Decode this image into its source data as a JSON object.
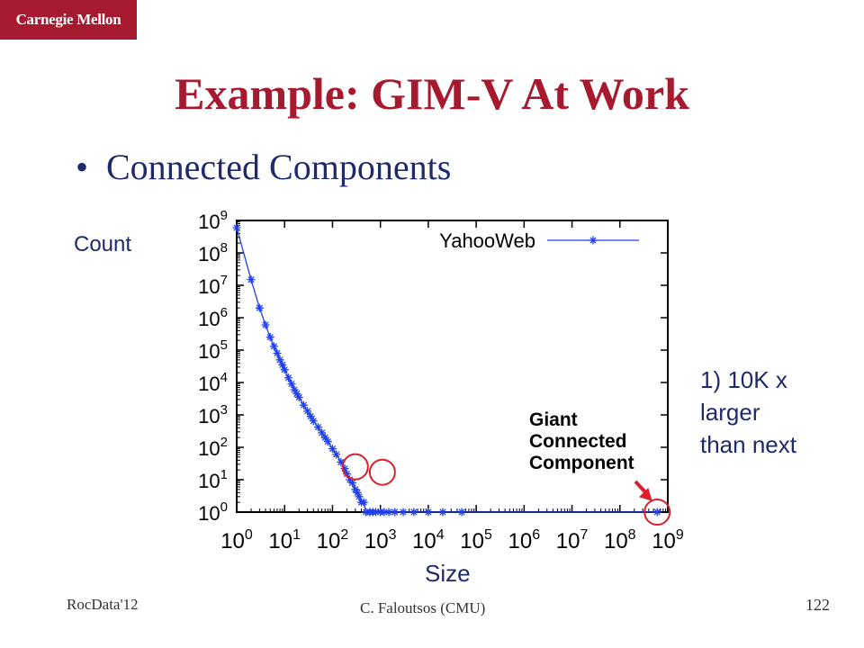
{
  "logo": {
    "text": "Carnegie Mellon"
  },
  "title": "Example: GIM-V At Work",
  "bullet": {
    "symbol": "•",
    "text": "Connected Components"
  },
  "y_axis_word": "Count",
  "x_axis_word": "Size",
  "note": [
    "1) 10K x",
    "larger",
    "than next"
  ],
  "footer": {
    "left": "RocData'12",
    "center": "C. Faloutsos (CMU)",
    "page": "122"
  },
  "colors": {
    "brand": "#a6192e",
    "series": "#1f3ff0",
    "text": "#1f2a6b",
    "highlight_circle": "#d8202a"
  },
  "chart_data": {
    "type": "scatter",
    "xscale": "log",
    "yscale": "log",
    "xlim_exp": [
      0,
      9
    ],
    "ylim_exp": [
      0,
      9
    ],
    "x_tick_exponents": [
      0,
      1,
      2,
      3,
      4,
      5,
      6,
      7,
      8,
      9
    ],
    "y_tick_exponents": [
      0,
      1,
      2,
      3,
      4,
      5,
      6,
      7,
      8,
      9
    ],
    "tick_base": "10",
    "legend": {
      "label": "YahooWeb",
      "position": "top-right"
    },
    "series": [
      {
        "name": "YahooWeb",
        "points": [
          [
            1,
            600000000
          ],
          [
            2,
            15000000
          ],
          [
            3,
            2000000
          ],
          [
            4,
            600000
          ],
          [
            5,
            250000
          ],
          [
            6,
            130000
          ],
          [
            7,
            80000
          ],
          [
            8,
            50000
          ],
          [
            9,
            35000
          ],
          [
            10,
            25000
          ],
          [
            12,
            14000
          ],
          [
            14,
            9000
          ],
          [
            16,
            6000
          ],
          [
            18,
            4500
          ],
          [
            20,
            3500
          ],
          [
            25,
            2000
          ],
          [
            30,
            1300
          ],
          [
            35,
            900
          ],
          [
            40,
            650
          ],
          [
            50,
            420
          ],
          [
            60,
            280
          ],
          [
            70,
            200
          ],
          [
            80,
            150
          ],
          [
            100,
            90
          ],
          [
            120,
            60
          ],
          [
            150,
            35
          ],
          [
            180,
            22
          ],
          [
            200,
            15
          ],
          [
            230,
            10
          ],
          [
            260,
            8
          ],
          [
            300,
            5
          ],
          [
            330,
            4
          ],
          [
            360,
            3
          ],
          [
            400,
            2
          ],
          [
            450,
            2
          ],
          [
            500,
            1
          ],
          [
            600,
            1
          ],
          [
            700,
            1
          ],
          [
            800,
            1
          ],
          [
            1000,
            1
          ],
          [
            1200,
            1
          ],
          [
            1500,
            1
          ],
          [
            2000,
            1
          ],
          [
            3000,
            1
          ],
          [
            5000,
            1
          ],
          [
            10000,
            1
          ],
          [
            20000,
            1
          ],
          [
            50000,
            1
          ],
          [
            600000000,
            1
          ]
        ]
      }
    ],
    "highlighted_points": [
      [
        300,
        25
      ],
      [
        1100,
        17
      ],
      [
        600000000,
        1
      ]
    ],
    "annotation": [
      "Giant",
      "Connected",
      "Component"
    ]
  }
}
